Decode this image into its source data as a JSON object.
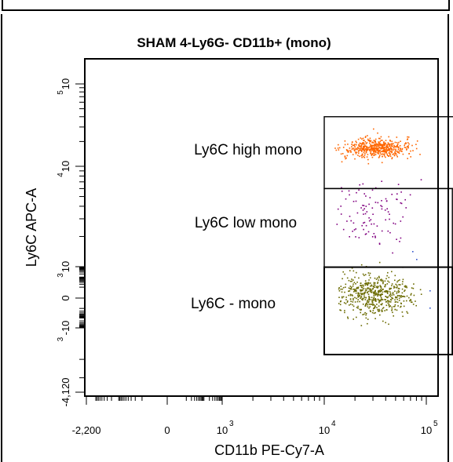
{
  "chart_data": {
    "type": "scatter",
    "title": "SHAM 4-Ly6G- CD11b+ (mono)",
    "xlabel": "CD11b PE-Cy7-A",
    "ylabel": "Ly6C APC-A",
    "x_scale": "biexponential",
    "y_scale": "biexponential",
    "x_ticks": [
      {
        "value": -2200,
        "label": "-2,200"
      },
      {
        "value": 0,
        "label": "0"
      },
      {
        "value": 1000,
        "label": "10",
        "sup": "3"
      },
      {
        "value": 10000,
        "label": "10",
        "sup": "4"
      },
      {
        "value": 100000,
        "label": "10",
        "sup": "5"
      }
    ],
    "y_ticks": [
      {
        "value": -4120,
        "label": "-4,120"
      },
      {
        "value": -1000,
        "label": "-10",
        "sup": "3"
      },
      {
        "value": 0,
        "label": "0"
      },
      {
        "value": 1000,
        "label": "10",
        "sup": "3"
      },
      {
        "value": 10000,
        "label": "10",
        "sup": "4"
      },
      {
        "value": 100000,
        "label": "10",
        "sup": "5"
      }
    ],
    "gates": [
      {
        "name": "Ly6C high mono",
        "color": "#ff6600",
        "x_range": [
          10000,
          200000
        ],
        "y_range": [
          6000,
          40000
        ]
      },
      {
        "name": "Ly6C low mono",
        "color": "#800080",
        "x_range": [
          10000,
          180000
        ],
        "y_range": [
          900,
          6000
        ]
      },
      {
        "name": "Ly6C - mono",
        "color": "#6b6b00",
        "x_range": [
          10000,
          180000
        ],
        "y_range": [
          -1800,
          900
        ]
      }
    ]
  }
}
